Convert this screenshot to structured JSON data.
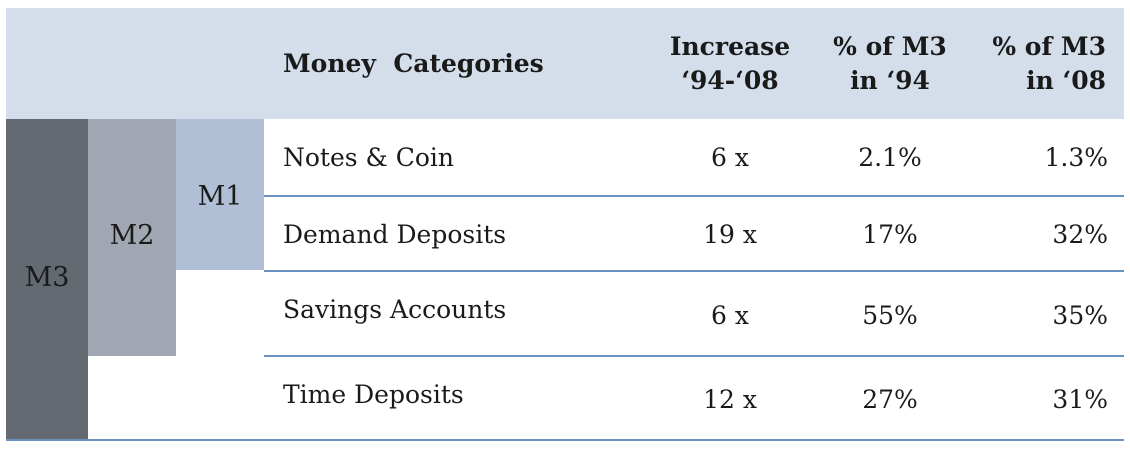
{
  "header": {
    "category_label": "Money  Categories",
    "increase_line1": "Increase",
    "increase_line2": "‘94-‘08",
    "pct94_line1": "% of M3",
    "pct94_line2": "in ‘94",
    "pct08_line1": "% of M3",
    "pct08_line2": "in ‘08"
  },
  "aggregates": {
    "m3": "M3",
    "m2": "M2",
    "m1": "M1"
  },
  "rows": [
    {
      "name": "Notes & Coin",
      "increase": "6 x",
      "pct94": "2.1%",
      "pct08": "1.3%"
    },
    {
      "name": "Demand Deposits",
      "increase": "19 x",
      "pct94": "17%",
      "pct08": "32%"
    },
    {
      "name": "Savings Accounts",
      "increase": "6 x",
      "pct94": "55%",
      "pct08": "35%"
    },
    {
      "name": "Time Deposits",
      "increase": "12 x",
      "pct94": "27%",
      "pct08": "31%"
    }
  ],
  "colors": {
    "header_band": "#d4deeb",
    "m3_bar": "#646a72",
    "m2_bar": "#a1a7b2",
    "m1_bar": "#b0bfd6",
    "row_rule": "#6c93bf"
  }
}
